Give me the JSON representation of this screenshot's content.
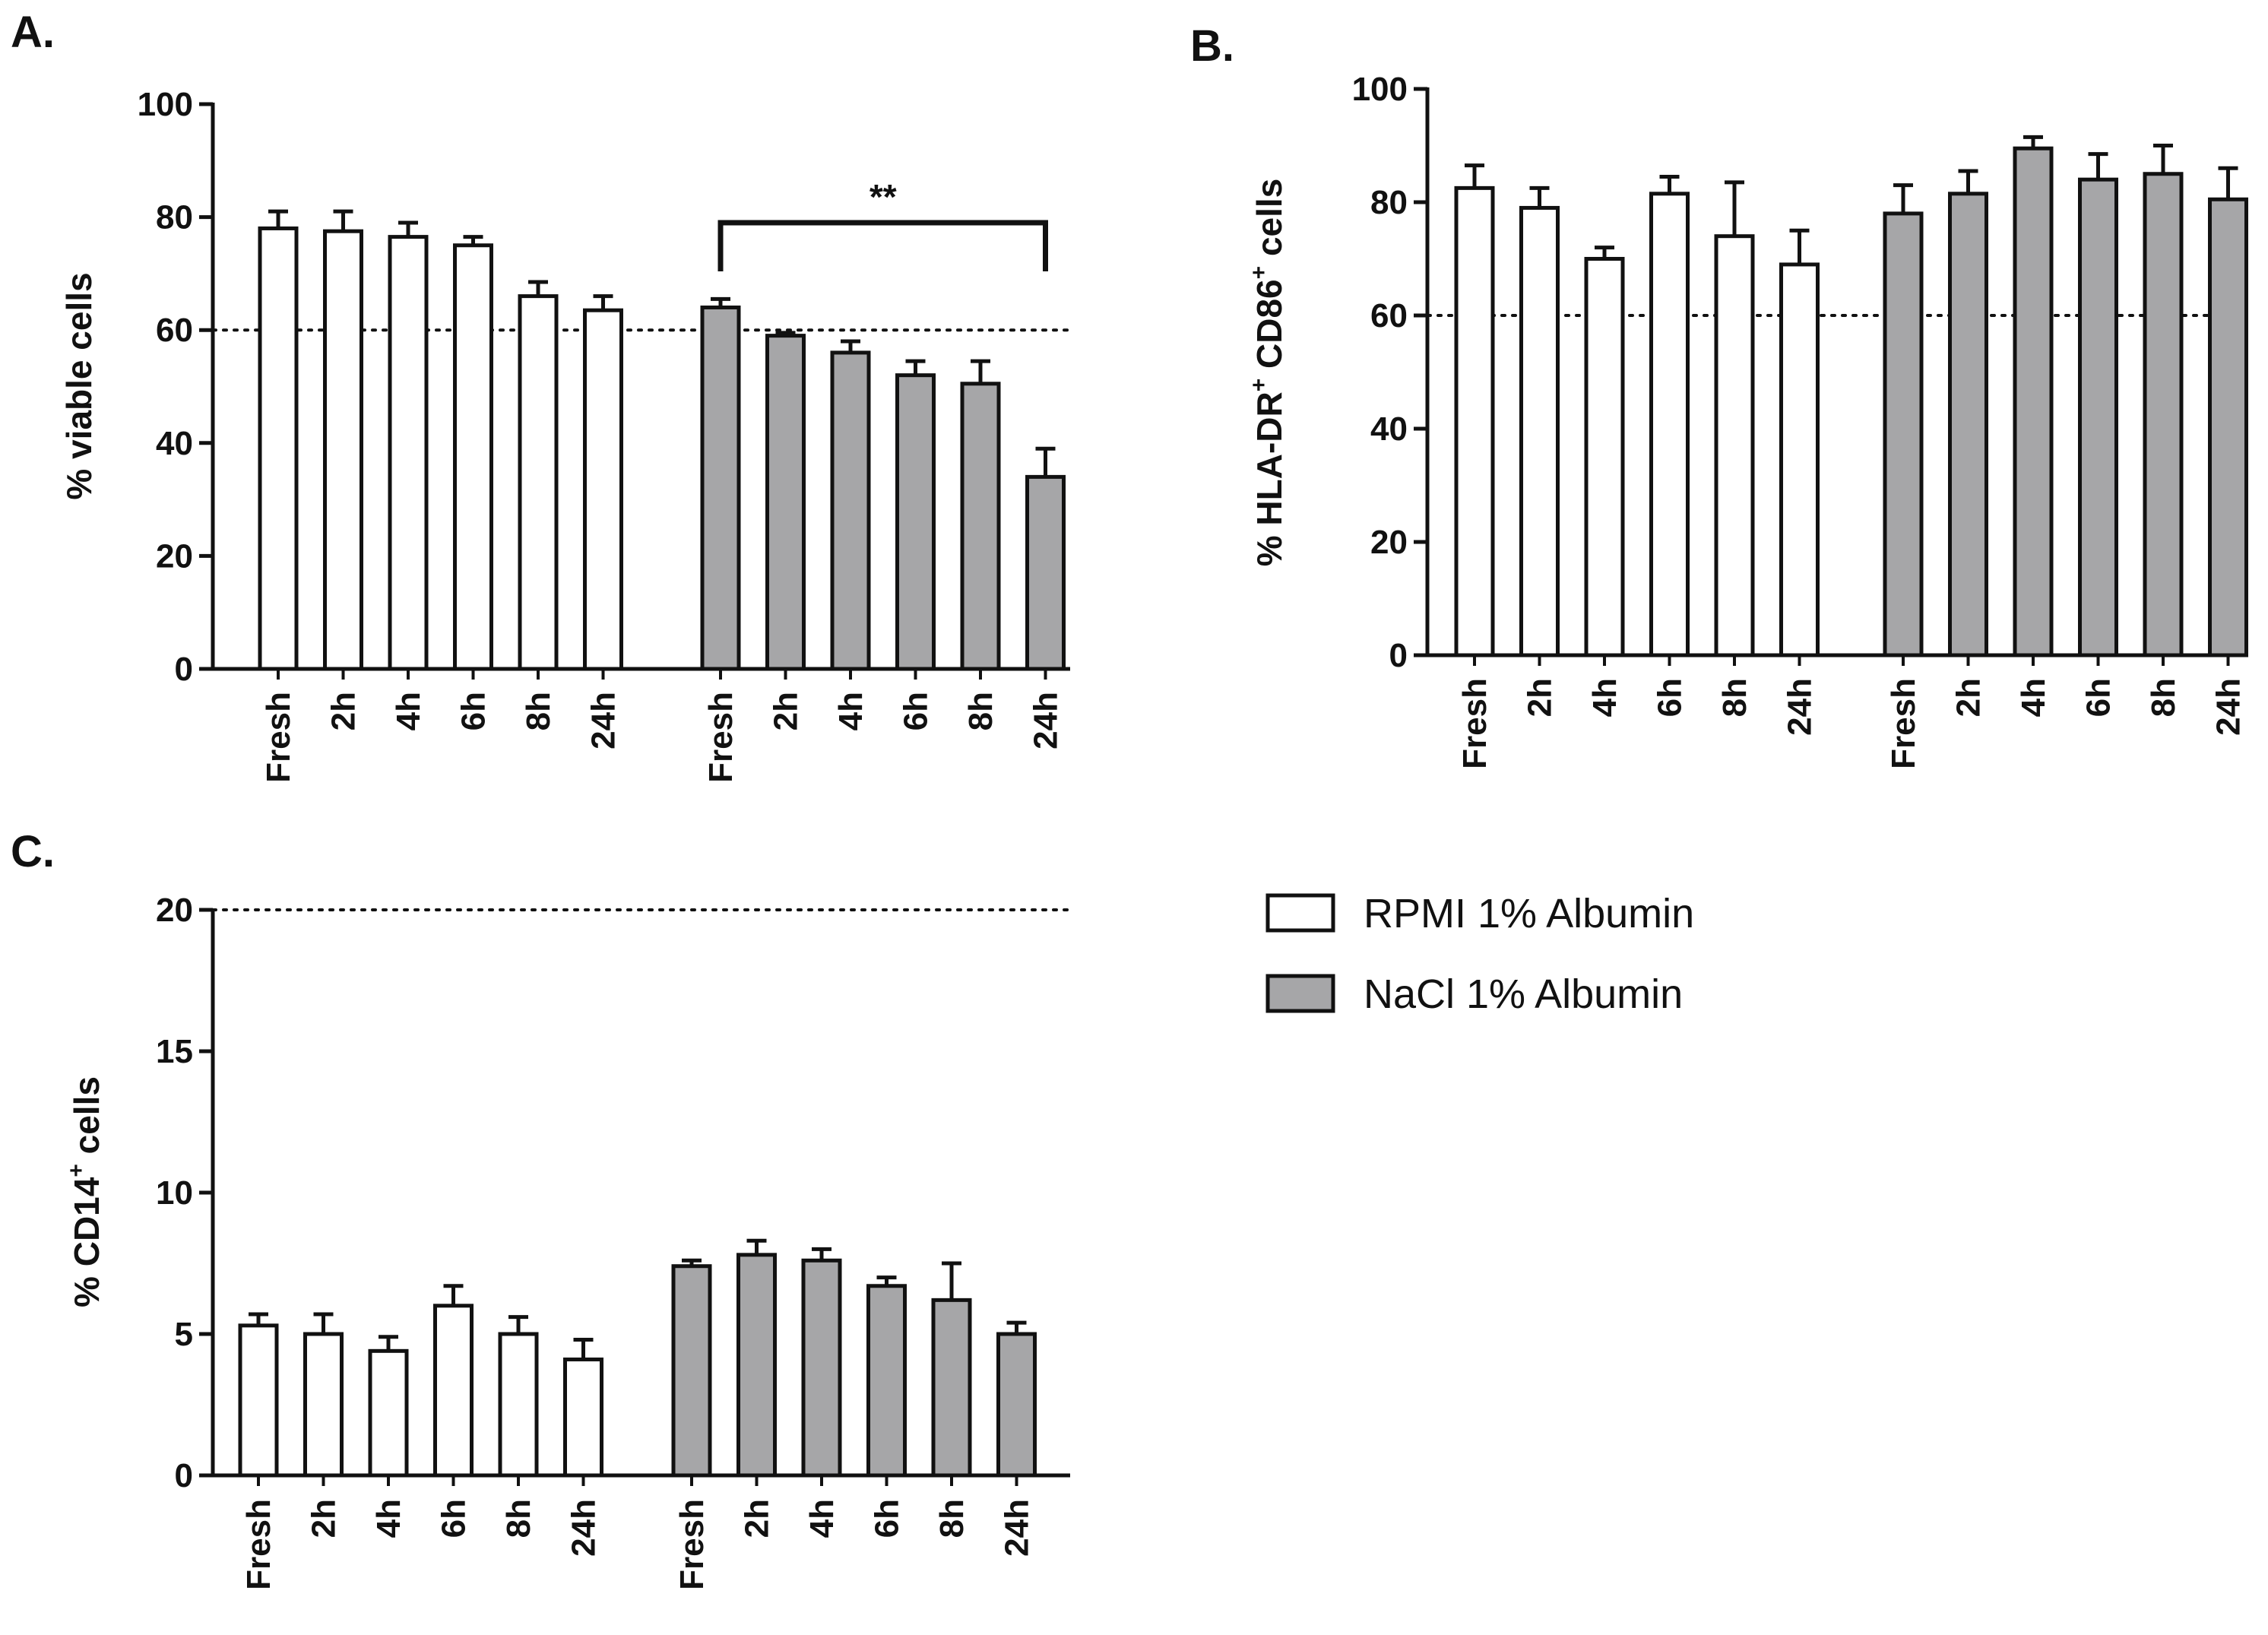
{
  "colors": {
    "rpmi_fill": "#ffffff",
    "nacl_fill": "#a6a6a8",
    "stroke": "#111111"
  },
  "legend": {
    "items": [
      {
        "label": "RPMI 1% Albumin",
        "series": "rpmi"
      },
      {
        "label": "NaCl 1% Albumin",
        "series": "nacl"
      }
    ]
  },
  "chart_data": [
    {
      "panel": "A.",
      "type": "bar",
      "ylabel": "% viable cells",
      "ylim": [
        0,
        100
      ],
      "yticks": [
        0,
        20,
        40,
        60,
        80,
        100
      ],
      "reference_line": 60,
      "groups": [
        {
          "name": "RPMI 1% Albumin",
          "series": "rpmi",
          "categories": [
            "Fresh",
            "2h",
            "4h",
            "6h",
            "8h",
            "24h"
          ],
          "values": [
            78,
            77.5,
            76.5,
            75,
            66,
            63.5
          ],
          "errors": [
            3,
            3.5,
            2.5,
            1.5,
            2.5,
            2.5
          ]
        },
        {
          "name": "NaCl 1% Albumin",
          "series": "nacl",
          "categories": [
            "Fresh",
            "2h",
            "4h",
            "6h",
            "8h",
            "24h"
          ],
          "values": [
            64,
            59,
            56,
            52,
            50.5,
            34
          ],
          "errors": [
            1.5,
            0.5,
            2,
            2.5,
            4,
            5
          ]
        }
      ],
      "annotation": {
        "text": "**",
        "from": "Fresh",
        "to": "24h",
        "group": "NaCl 1% Albumin",
        "y": 79
      }
    },
    {
      "panel": "B.",
      "type": "bar",
      "ylabel": "% HLA-DR+ CD86+ cells",
      "ylabel_parts": [
        "% HLA-DR",
        "+",
        " CD86",
        "+",
        " cells"
      ],
      "ylim": [
        0,
        100
      ],
      "yticks": [
        0,
        20,
        40,
        60,
        80,
        100
      ],
      "reference_line": 60,
      "groups": [
        {
          "name": "RPMI 1% Albumin",
          "series": "rpmi",
          "categories": [
            "Fresh",
            "2h",
            "4h",
            "6h",
            "8h",
            "24h"
          ],
          "values": [
            82.5,
            79,
            70,
            81.5,
            74,
            69
          ],
          "errors": [
            4,
            3.5,
            2,
            3,
            9.5,
            6
          ]
        },
        {
          "name": "NaCl 1% Albumin",
          "series": "nacl",
          "categories": [
            "Fresh",
            "2h",
            "4h",
            "6h",
            "8h",
            "24h"
          ],
          "values": [
            78,
            81.5,
            89.5,
            84,
            85,
            80.5
          ],
          "errors": [
            5,
            4,
            2,
            4.5,
            5,
            5.5
          ]
        }
      ]
    },
    {
      "panel": "C.",
      "type": "bar",
      "ylabel": "% CD14+ cells",
      "ylabel_parts": [
        "% CD14",
        "+",
        " cells"
      ],
      "ylim": [
        0,
        20
      ],
      "yticks": [
        0,
        5,
        10,
        15,
        20
      ],
      "reference_line": 20,
      "groups": [
        {
          "name": "RPMI 1% Albumin",
          "series": "rpmi",
          "categories": [
            "Fresh",
            "2h",
            "4h",
            "6h",
            "8h",
            "24h"
          ],
          "values": [
            5.3,
            5.0,
            4.4,
            6.0,
            5.0,
            4.1
          ],
          "errors": [
            0.4,
            0.7,
            0.5,
            0.7,
            0.6,
            0.7
          ]
        },
        {
          "name": "NaCl 1% Albumin",
          "series": "nacl",
          "categories": [
            "Fresh",
            "2h",
            "4h",
            "6h",
            "8h",
            "24h"
          ],
          "values": [
            7.4,
            7.8,
            7.6,
            6.7,
            6.2,
            5.0
          ],
          "errors": [
            0.2,
            0.5,
            0.4,
            0.3,
            1.3,
            0.4
          ]
        }
      ]
    }
  ]
}
